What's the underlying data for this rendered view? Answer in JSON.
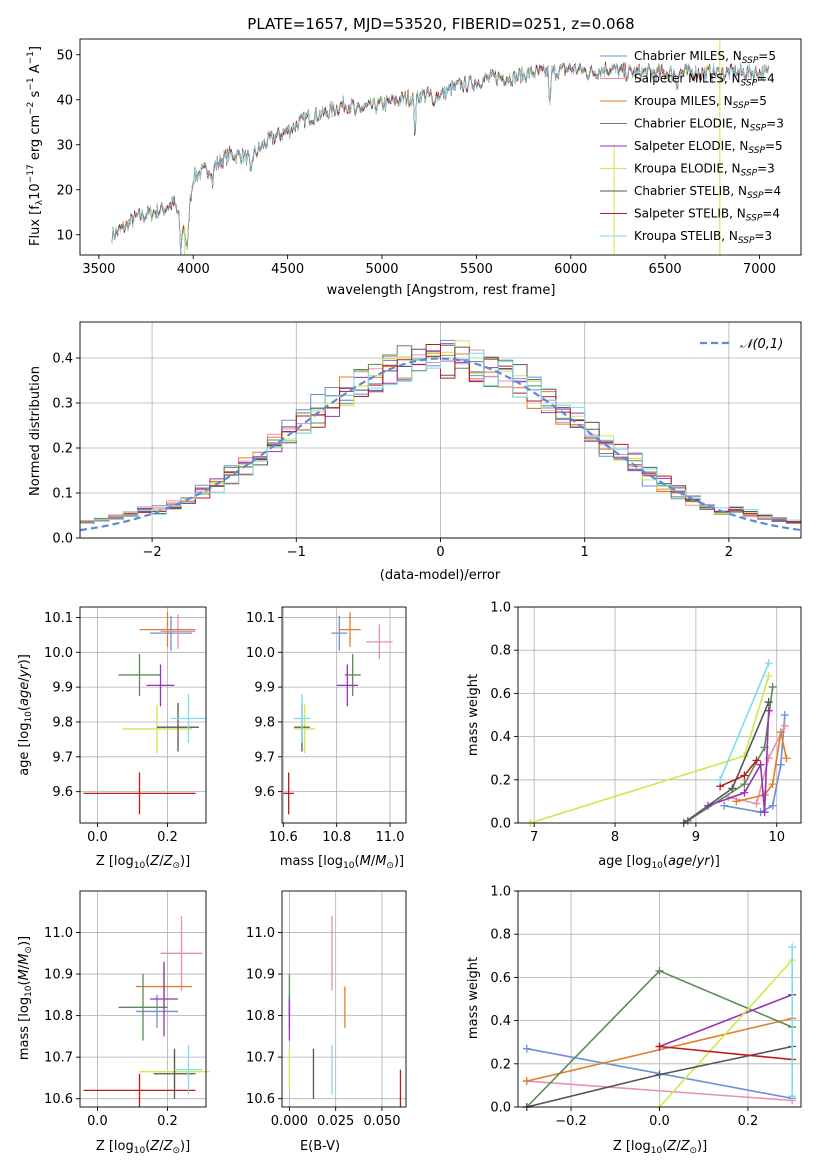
{
  "title": "PLATE=1657, MJD=53520, FIBERID=0251, z=0.068",
  "models": [
    {
      "label": "Chabrier MILES, N",
      "sub": "SSP",
      "tail": "=5",
      "color": "#6b8fd9"
    },
    {
      "label": "Salpeter MILES, N",
      "sub": "SSP",
      "tail": "=4",
      "color": "#e88fb8"
    },
    {
      "label": "Kroupa MILES, N",
      "sub": "SSP",
      "tail": "=5",
      "color": "#e07f2a"
    },
    {
      "label": "Chabrier ELODIE, N",
      "sub": "SSP",
      "tail": "=3",
      "color": "#5e8a5a"
    },
    {
      "label": "Salpeter ELODIE, N",
      "sub": "SSP",
      "tail": "=5",
      "color": "#9a32b8"
    },
    {
      "label": "Kroupa ELODIE, N",
      "sub": "SSP",
      "tail": "=3",
      "color": "#cfe84a"
    },
    {
      "label": "Chabrier STELIB, N",
      "sub": "SSP",
      "tail": "=4",
      "color": "#555555"
    },
    {
      "label": "Salpeter STELIB, N",
      "sub": "SSP",
      "tail": "=4",
      "color": "#b81c1c"
    },
    {
      "label": "Kroupa STELIB, N",
      "sub": "SSP",
      "tail": "=3",
      "color": "#7fdcec"
    }
  ],
  "chart_data": [
    {
      "type": "line",
      "xlabel": "wavelength [Angstrom, rest frame]",
      "ylabel": "Flux [fλ10−17 erg cm−2 s−1 A−1]",
      "xlim": [
        3400,
        7220
      ],
      "ylim": [
        5.5,
        53.5
      ],
      "xticks": [
        3500,
        4000,
        4500,
        5000,
        5500,
        6000,
        6500,
        7000
      ],
      "yticks": [
        10,
        20,
        30,
        40,
        50
      ],
      "continuum": {
        "x": [
          3570,
          3650,
          3700,
          3800,
          3900,
          3960,
          4000,
          4100,
          4200,
          4300,
          4400,
          4500,
          4600,
          4700,
          4800,
          4900,
          5000,
          5100,
          5200,
          5300,
          5400,
          5500,
          5600,
          5700,
          5800,
          5900,
          6000,
          6100,
          6200,
          6300,
          6400,
          6500,
          6600,
          6700,
          6800,
          6900,
          7000,
          7050
        ],
        "y": [
          10,
          12,
          14,
          15,
          17,
          10,
          23,
          25,
          28,
          27,
          31,
          33,
          36,
          37,
          39,
          38,
          39,
          40,
          41,
          41,
          43,
          44,
          45,
          45,
          46,
          46,
          47,
          46,
          47,
          46,
          46,
          46,
          46,
          46,
          46,
          46,
          46,
          46
        ]
      },
      "absorption_lines": [
        {
          "x": 3934,
          "depth": 8
        },
        {
          "x": 3969,
          "depth": 7
        },
        {
          "x": 4102,
          "depth": 4
        },
        {
          "x": 4304,
          "depth": 5
        },
        {
          "x": 4861,
          "depth": 3
        },
        {
          "x": 5175,
          "depth": 9
        },
        {
          "x": 5270,
          "depth": 3
        },
        {
          "x": 5890,
          "depth": 8
        },
        {
          "x": 6563,
          "depth": 3
        }
      ]
    },
    {
      "type": "bar",
      "xlabel": "(data-model)/error",
      "ylabel": "Normed distribution",
      "xlim": [
        -2.5,
        2.5
      ],
      "ylim": [
        0,
        0.48
      ],
      "xticks": [
        -2,
        -1,
        0,
        1,
        2
      ],
      "yticks": [
        0,
        0.1,
        0.2,
        0.3,
        0.4
      ],
      "legend": {
        "label": "𝒩(0,1)",
        "position": "top-right"
      },
      "bin_width": 0.1,
      "bin_start": -2.5,
      "gaussian": {
        "mean": 0,
        "sigma": 1
      }
    },
    {
      "type": "scatter",
      "xlabel": "Z [log10(Z/Z⊙)]",
      "ylabel": "age [log10(age/yr)]",
      "xlim": [
        -0.05,
        0.31
      ],
      "ylim": [
        9.51,
        10.13
      ],
      "xticks": [
        0,
        0.2
      ],
      "yticks": [
        9.6,
        9.7,
        9.8,
        9.9,
        10.0,
        10.1
      ],
      "points": [
        {
          "m": 0,
          "x": 0.21,
          "y": 10.055,
          "xerr": 0.06,
          "yerr": 0.05
        },
        {
          "m": 1,
          "x": 0.23,
          "y": 10.06,
          "xerr": 0.05,
          "yerr": 0.05
        },
        {
          "m": 2,
          "x": 0.2,
          "y": 10.065,
          "xerr": 0.08,
          "yerr": 0.05
        },
        {
          "m": 3,
          "x": 0.12,
          "y": 9.935,
          "xerr": 0.06,
          "yerr": 0.06
        },
        {
          "m": 4,
          "x": 0.18,
          "y": 9.905,
          "xerr": 0.04,
          "yerr": 0.06
        },
        {
          "m": 5,
          "x": 0.17,
          "y": 9.78,
          "xerr": 0.1,
          "yerr": 0.07
        },
        {
          "m": 6,
          "x": 0.23,
          "y": 9.785,
          "xerr": 0.06,
          "yerr": 0.07
        },
        {
          "m": 7,
          "x": 0.12,
          "y": 9.595,
          "xerr": 0.16,
          "yerr": 0.06
        },
        {
          "m": 8,
          "x": 0.26,
          "y": 9.81,
          "xerr": 0.05,
          "yerr": 0.07
        }
      ]
    },
    {
      "type": "scatter",
      "xlabel": "mass [log10(M/M⊙)]",
      "ylabel": "",
      "xlim": [
        10.595,
        11.06
      ],
      "ylim": [
        9.51,
        10.13
      ],
      "xticks": [
        10.6,
        10.8,
        11.0
      ],
      "yticks": [
        9.6,
        9.7,
        9.8,
        9.9,
        10.0,
        10.1
      ],
      "points": [
        {
          "m": 0,
          "x": 10.81,
          "y": 10.055,
          "xerr": 0.03,
          "yerr": 0.05
        },
        {
          "m": 1,
          "x": 10.96,
          "y": 10.03,
          "xerr": 0.05,
          "yerr": 0.05
        },
        {
          "m": 2,
          "x": 10.85,
          "y": 10.065,
          "xerr": 0.04,
          "yerr": 0.05
        },
        {
          "m": 3,
          "x": 10.86,
          "y": 9.935,
          "xerr": 0.03,
          "yerr": 0.06
        },
        {
          "m": 4,
          "x": 10.84,
          "y": 9.905,
          "xerr": 0.04,
          "yerr": 0.06
        },
        {
          "m": 5,
          "x": 10.68,
          "y": 9.78,
          "xerr": 0.04,
          "yerr": 0.07
        },
        {
          "m": 6,
          "x": 10.67,
          "y": 9.785,
          "xerr": 0.03,
          "yerr": 0.07
        },
        {
          "m": 7,
          "x": 10.62,
          "y": 9.595,
          "xerr": 0.02,
          "yerr": 0.06
        },
        {
          "m": 8,
          "x": 10.67,
          "y": 9.81,
          "xerr": 0.03,
          "yerr": 0.07
        }
      ]
    },
    {
      "type": "line",
      "xlabel": "age [log10(age/yr)]",
      "ylabel": "mass weight",
      "xlim": [
        6.8,
        10.3
      ],
      "ylim": [
        0,
        1.0
      ],
      "xticks": [
        7,
        8,
        9,
        10
      ],
      "yticks": [
        0.0,
        0.2,
        0.4,
        0.6,
        0.8,
        1.0
      ],
      "series": [
        {
          "m": 0,
          "x": [
            9.35,
            9.8,
            9.95,
            10.05,
            10.1
          ],
          "y": [
            0.08,
            0.05,
            0.08,
            0.27,
            0.5
          ]
        },
        {
          "m": 1,
          "x": [
            9.4,
            9.75,
            9.9,
            10.1
          ],
          "y": [
            0.12,
            0.09,
            0.3,
            0.45
          ]
        },
        {
          "m": 2,
          "x": [
            9.5,
            9.85,
            9.95,
            10.05,
            10.12
          ],
          "y": [
            0.1,
            0.13,
            0.18,
            0.42,
            0.3
          ]
        },
        {
          "m": 3,
          "x": [
            8.9,
            9.6,
            9.85,
            9.95
          ],
          "y": [
            0.01,
            0.18,
            0.35,
            0.63
          ]
        },
        {
          "m": 4,
          "x": [
            9.15,
            9.6,
            9.8,
            9.85,
            9.9
          ],
          "y": [
            0.08,
            0.14,
            0.27,
            0.05,
            0.52
          ]
        },
        {
          "m": 5,
          "x": [
            6.95,
            9.6,
            9.9
          ],
          "y": [
            0.0,
            0.31,
            0.68
          ]
        },
        {
          "m": 6,
          "x": [
            8.85,
            9.45,
            9.9
          ],
          "y": [
            0.0,
            0.16,
            0.56
          ]
        },
        {
          "m": 7,
          "x": [
            9.3,
            9.6,
            9.75
          ],
          "y": [
            0.17,
            0.22,
            0.29
          ]
        },
        {
          "m": 8,
          "x": [
            9.3,
            9.9
          ],
          "y": [
            0.2,
            0.74
          ]
        }
      ]
    },
    {
      "type": "scatter",
      "xlabel": "Z [log10(Z/Z⊙)]",
      "ylabel": "mass [log10(M/M⊙)]",
      "xlim": [
        -0.05,
        0.31
      ],
      "ylim": [
        10.58,
        11.1
      ],
      "xticks": [
        0,
        0.2
      ],
      "yticks": [
        10.6,
        10.7,
        10.8,
        10.9,
        11.0
      ],
      "points": [
        {
          "m": 0,
          "x": 0.17,
          "y": 10.81,
          "xerr": 0.06,
          "yerr": 0.04
        },
        {
          "m": 1,
          "x": 0.24,
          "y": 10.95,
          "xerr": 0.06,
          "yerr": 0.09
        },
        {
          "m": 2,
          "x": 0.19,
          "y": 10.87,
          "xerr": 0.08,
          "yerr": 0.05
        },
        {
          "m": 3,
          "x": 0.13,
          "y": 10.82,
          "xerr": 0.07,
          "yerr": 0.08
        },
        {
          "m": 4,
          "x": 0.19,
          "y": 10.84,
          "xerr": 0.04,
          "yerr": 0.09
        },
        {
          "m": 5,
          "x": 0.22,
          "y": 10.665,
          "xerr": 0.1,
          "yerr": 0.05
        },
        {
          "m": 6,
          "x": 0.22,
          "y": 10.66,
          "xerr": 0.06,
          "yerr": 0.06
        },
        {
          "m": 7,
          "x": 0.12,
          "y": 10.62,
          "xerr": 0.16,
          "yerr": 0.04
        },
        {
          "m": 8,
          "x": 0.26,
          "y": 10.67,
          "xerr": 0.04,
          "yerr": 0.06
        }
      ]
    },
    {
      "type": "scatter",
      "xlabel": "E(B-V)",
      "ylabel": "",
      "xlim": [
        -0.004,
        0.063
      ],
      "ylim": [
        10.58,
        11.1
      ],
      "xticks": [
        0.0,
        0.025,
        0.05
      ],
      "yticks": [
        10.6,
        10.7,
        10.8,
        10.9,
        11.0
      ],
      "points": [
        {
          "m": 0,
          "x": 0.0,
          "y": 10.81,
          "xerr": 0,
          "yerr": 0.04
        },
        {
          "m": 1,
          "x": 0.023,
          "y": 10.95,
          "xerr": 0,
          "yerr": 0.09
        },
        {
          "m": 2,
          "x": 0.03,
          "y": 10.82,
          "xerr": 0,
          "yerr": 0.05
        },
        {
          "m": 3,
          "x": 0.0,
          "y": 10.85,
          "xerr": 0,
          "yerr": 0.05
        },
        {
          "m": 4,
          "x": 0.0,
          "y": 10.79,
          "xerr": 0,
          "yerr": 0.05
        },
        {
          "m": 5,
          "x": 0.0,
          "y": 10.67,
          "xerr": 0,
          "yerr": 0.05
        },
        {
          "m": 6,
          "x": 0.013,
          "y": 10.66,
          "xerr": 0,
          "yerr": 0.06
        },
        {
          "m": 7,
          "x": 0.06,
          "y": 10.625,
          "xerr": 0,
          "yerr": 0.045
        },
        {
          "m": 8,
          "x": 0.023,
          "y": 10.67,
          "xerr": 0,
          "yerr": 0.06
        }
      ]
    },
    {
      "type": "line",
      "xlabel": "Z [log10(Z/Z⊙)]",
      "ylabel": "mass weight",
      "xlim": [
        -0.32,
        0.32
      ],
      "ylim": [
        0,
        1.0
      ],
      "xticks": [
        -0.2,
        0.0,
        0.2
      ],
      "yticks": [
        0.0,
        0.2,
        0.4,
        0.6,
        0.8,
        1.0
      ],
      "series": [
        {
          "m": 0,
          "x": [
            -0.3,
            0.3
          ],
          "y": [
            0.27,
            0.04
          ]
        },
        {
          "m": 1,
          "x": [
            -0.3,
            0.3
          ],
          "y": [
            0.12,
            0.03
          ]
        },
        {
          "m": 2,
          "x": [
            -0.3,
            0.3
          ],
          "y": [
            0.12,
            0.41
          ]
        },
        {
          "m": 3,
          "x": [
            -0.3,
            0.0,
            0.3
          ],
          "y": [
            0.0,
            0.63,
            0.37
          ]
        },
        {
          "m": 4,
          "x": [
            0.0,
            0.3
          ],
          "y": [
            0.28,
            0.52
          ]
        },
        {
          "m": 5,
          "x": [
            0.0,
            0.3
          ],
          "y": [
            0.0,
            0.68
          ]
        },
        {
          "m": 6,
          "x": [
            -0.3,
            0.0,
            0.3
          ],
          "y": [
            0.0,
            0.15,
            0.28
          ]
        },
        {
          "m": 7,
          "x": [
            0.0,
            0.3
          ],
          "y": [
            0.28,
            0.22
          ]
        },
        {
          "m": 8,
          "x": [
            0.3,
            0.3
          ],
          "y": [
            0.05,
            0.74
          ]
        }
      ]
    }
  ]
}
